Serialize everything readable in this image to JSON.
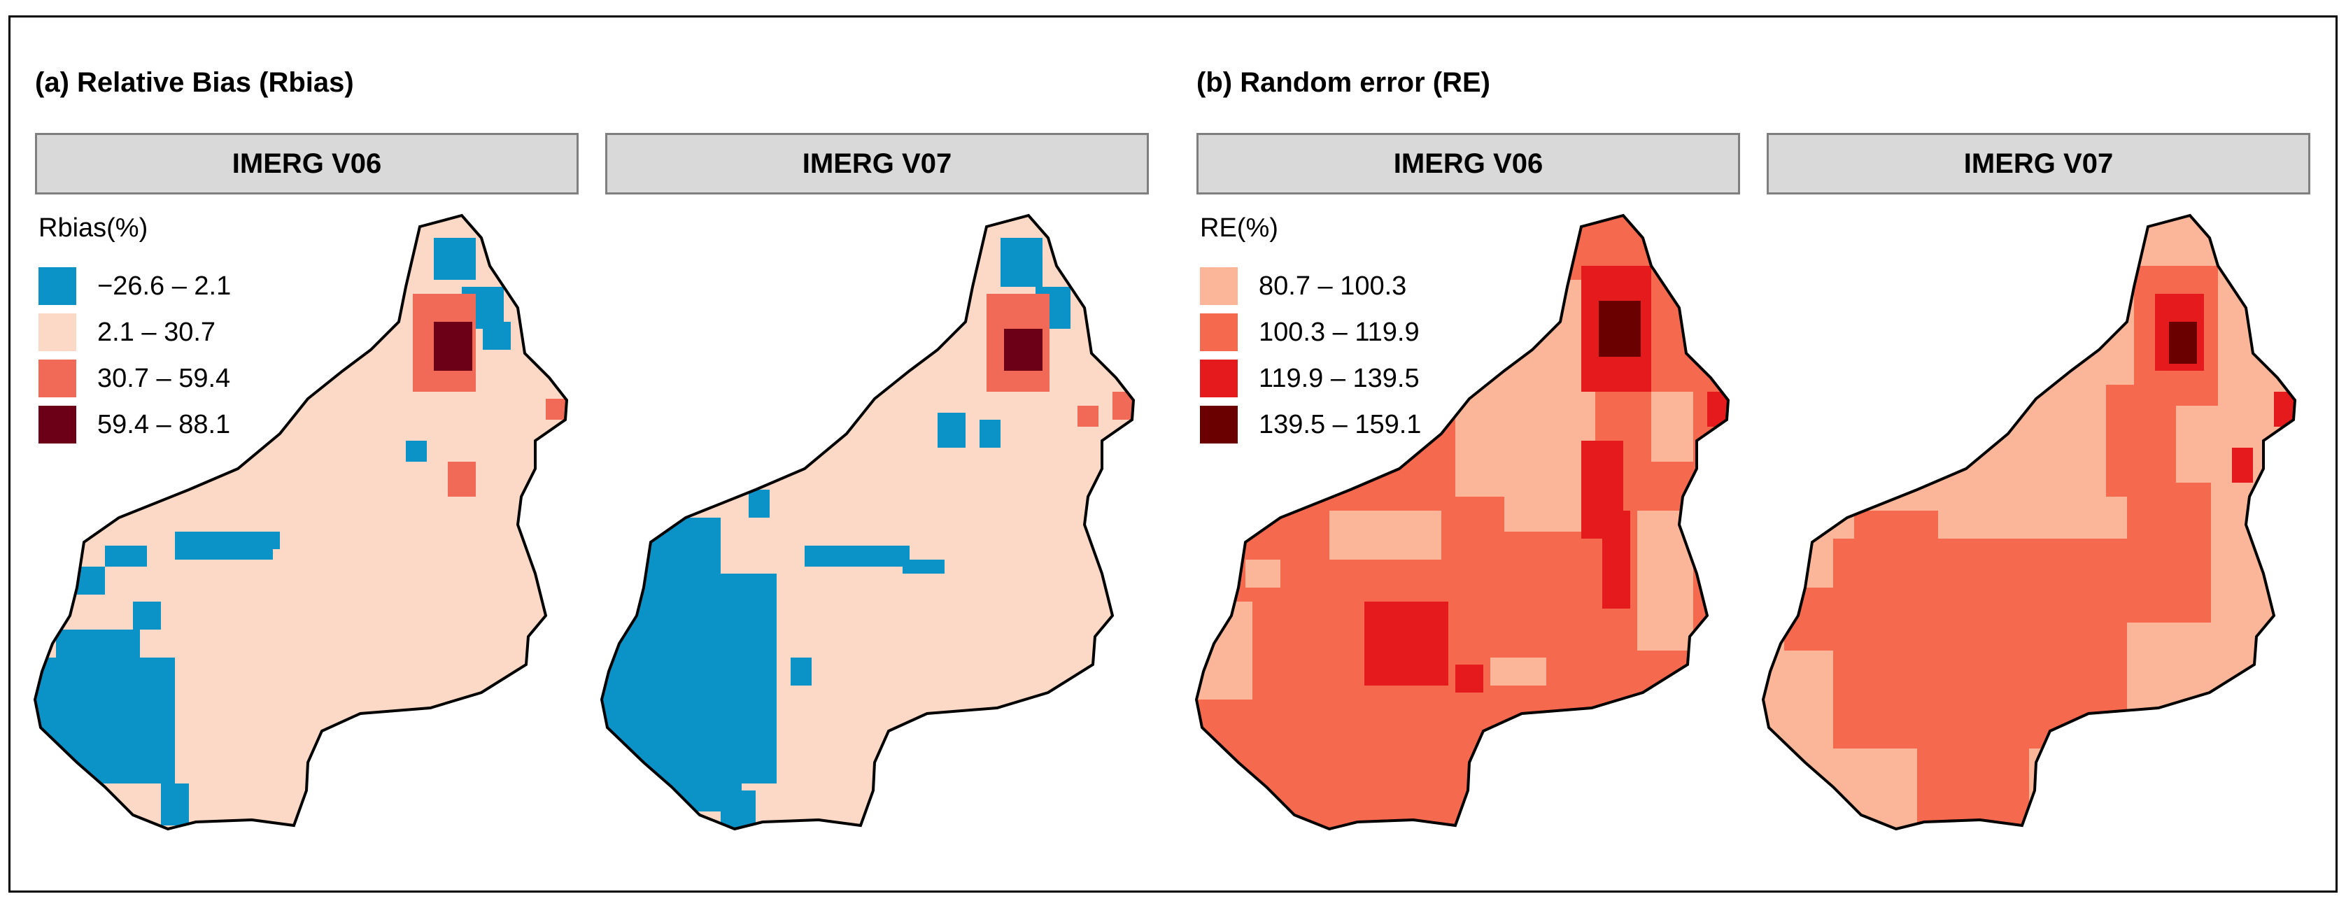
{
  "panels": {
    "rbias": {
      "title": "(a) Relative Bias (Rbias)",
      "legend_title": "Rbias(%)",
      "classes": [
        {
          "label": "−26.6 – 2.1",
          "color": "#0b93c8"
        },
        {
          "label": "2.1 – 30.7",
          "color": "#fbd9c6"
        },
        {
          "label": "30.7 – 59.4",
          "color": "#f06a57"
        },
        {
          "label": "59.4 – 88.1",
          "color": "#6b0016"
        }
      ],
      "maps": [
        {
          "label": "IMERG V06"
        },
        {
          "label": "IMERG V07"
        }
      ]
    },
    "re": {
      "title": "(b) Random error (RE)",
      "legend_title": "RE(%)",
      "classes": [
        {
          "label": "80.7 – 100.3",
          "color": "#fbb69a"
        },
        {
          "label": "100.3 – 119.9",
          "color": "#f5694f"
        },
        {
          "label": "119.9 – 139.5",
          "color": "#e41a1c"
        },
        {
          "label": "139.5 – 159.1",
          "color": "#6b0000"
        }
      ],
      "maps": [
        {
          "label": "IMERG V06"
        },
        {
          "label": "IMERG V07"
        }
      ]
    }
  }
}
